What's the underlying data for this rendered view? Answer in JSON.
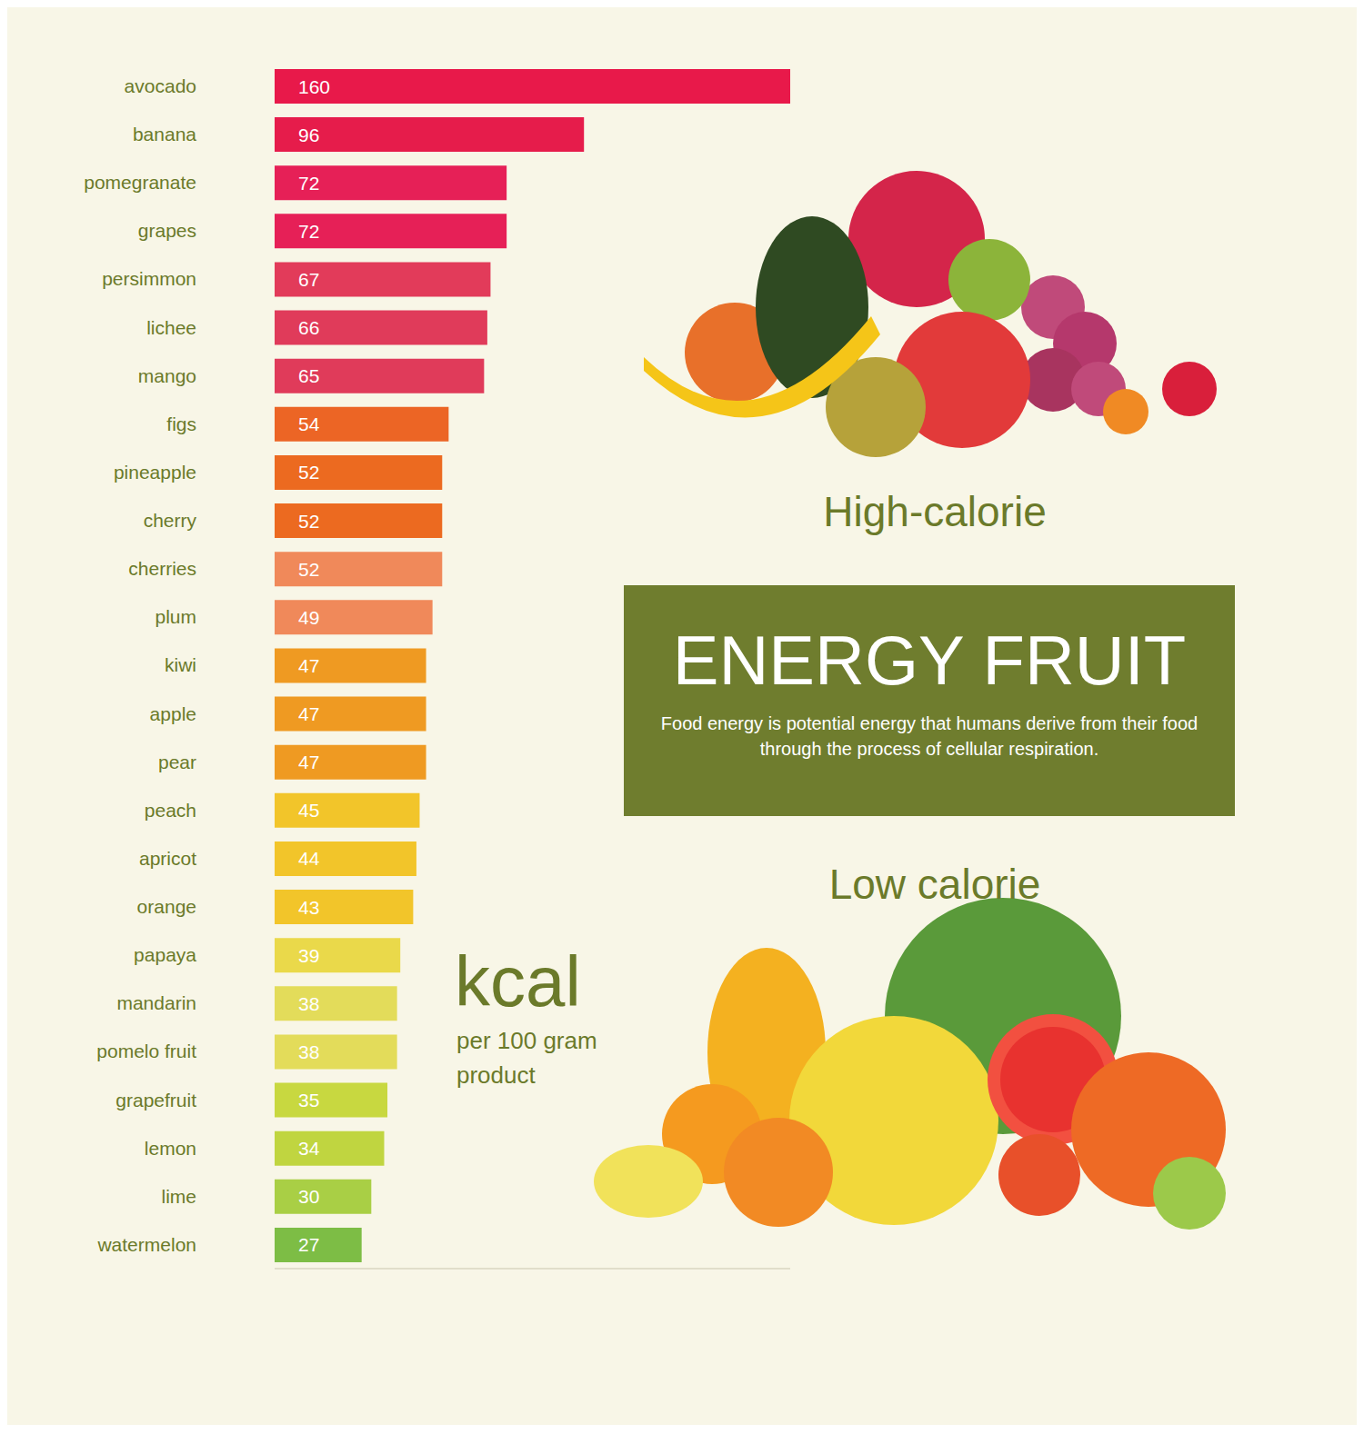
{
  "chart_data": {
    "type": "bar",
    "orientation": "horizontal",
    "title": "ENERGY FRUIT",
    "subtitle": "Food energy is potential energy that humans derive from their food through the process of cellular respiration.",
    "annotations": [
      "High-calorie",
      "Low calorie",
      "kcal",
      "per 100 gram product"
    ],
    "categories": [
      "avocado",
      "banana",
      "pomegranate",
      "grapes",
      "persimmon",
      "lichee",
      "mango",
      "figs",
      "pineapple",
      "cherry",
      "cherries",
      "plum",
      "kiwi",
      "apple",
      "pear",
      "peach",
      "apricot",
      "orange",
      "papaya",
      "mandarin",
      "pomelo fruit",
      "grapefruit",
      "lemon",
      "lime",
      "watermelon"
    ],
    "values": [
      160,
      96,
      72,
      72,
      67,
      66,
      65,
      54,
      52,
      52,
      52,
      49,
      47,
      47,
      47,
      45,
      44,
      43,
      39,
      38,
      38,
      35,
      34,
      30,
      27
    ],
    "colors": [
      "#e8194a",
      "#e61c4b",
      "#e62057",
      "#e62057",
      "#e23b5a",
      "#e03b5a",
      "#e03b5a",
      "#ec6525",
      "#ec6a20",
      "#ec6a20",
      "#f0895a",
      "#f0895a",
      "#ef9a22",
      "#ef9a22",
      "#ef9a22",
      "#f2c52a",
      "#f2c52a",
      "#f2c52a",
      "#ead94a",
      "#e3dc5a",
      "#e3dc5a",
      "#c8d840",
      "#c0d540",
      "#a9cf45",
      "#7dbd45"
    ],
    "xlim": [
      0,
      160
    ],
    "data_labels": true,
    "tick_labels": "y",
    "grid": false
  }
}
